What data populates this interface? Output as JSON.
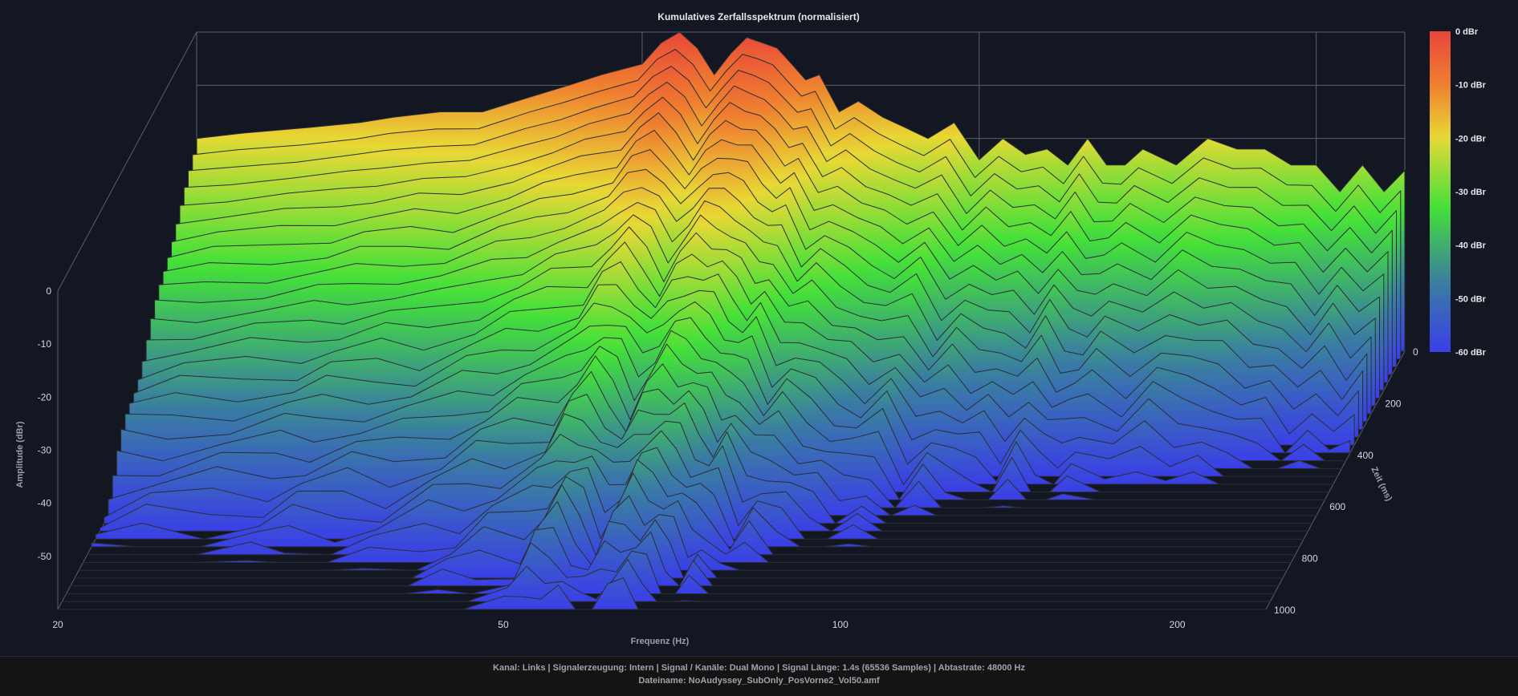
{
  "chart_data": {
    "type": "waterfall-3d-surface",
    "title": "Kumulatives Zerfallsspektrum (normalisiert)",
    "xlabel": "Frequenz (Hz)",
    "ylabel": "Amplitude (dBr)",
    "zlabel": "Zeit (ms)",
    "x_scale": "log",
    "xlim": [
      20,
      240
    ],
    "ylim": [
      -60,
      0
    ],
    "zlim": [
      0,
      1000
    ],
    "x_ticks": [
      20,
      50,
      100,
      200
    ],
    "y_ticks": [
      0,
      -10,
      -20,
      -30,
      -40,
      -50
    ],
    "z_ticks": [
      0,
      200,
      400,
      600,
      800,
      1000
    ],
    "colorbar": {
      "labels": [
        "0 dBr",
        "-10 dBr",
        "-20 dBr",
        "-30 dBr",
        "-40 dBr",
        "-50 dBr",
        "-60 dBr"
      ],
      "colors": [
        "#e8453a",
        "#ef8030",
        "#e8d835",
        "#44e039",
        "#3a7fa0",
        "#3a3ee8"
      ]
    },
    "front_slice_time_ms": 0,
    "front_slice": {
      "freq_hz": [
        20,
        22,
        25,
        28,
        30,
        33,
        36,
        40,
        43,
        46,
        50,
        52,
        54,
        56,
        58,
        60,
        62,
        64,
        66,
        68,
        70,
        72,
        75,
        78,
        82,
        86,
        90,
        95,
        100,
        105,
        110,
        115,
        120,
        125,
        130,
        135,
        140,
        150,
        160,
        170,
        180,
        190,
        200,
        210,
        220,
        230,
        240
      ],
      "dbr": [
        -20,
        -19,
        -18,
        -17,
        -16,
        -15,
        -15,
        -12,
        -10,
        -8,
        -6,
        -2,
        0,
        -3,
        -8,
        -4,
        -1,
        -2,
        -3,
        -6,
        -9,
        -8,
        -15,
        -13,
        -16,
        -18,
        -20,
        -17,
        -24,
        -20,
        -23,
        -22,
        -25,
        -20,
        -25,
        -25,
        -22,
        -25,
        -20,
        -22,
        -22,
        -25,
        -25,
        -30,
        -25,
        -30,
        -26
      ]
    },
    "last_slice_time_ms": 1000,
    "last_slice_dbr_approx": -60
  },
  "footer": {
    "info_line": "Kanal: Links  |  Signalerzeugung: Intern  |  Signal / Kanäle: Dual Mono  |  Signal Länge: 1.4s (65536 Samples)  |  Abtastrate: 48000 Hz",
    "file_line": "Dateiname: NoAudyssey_SubOnly_PosVorne2_Vol50.amf"
  }
}
